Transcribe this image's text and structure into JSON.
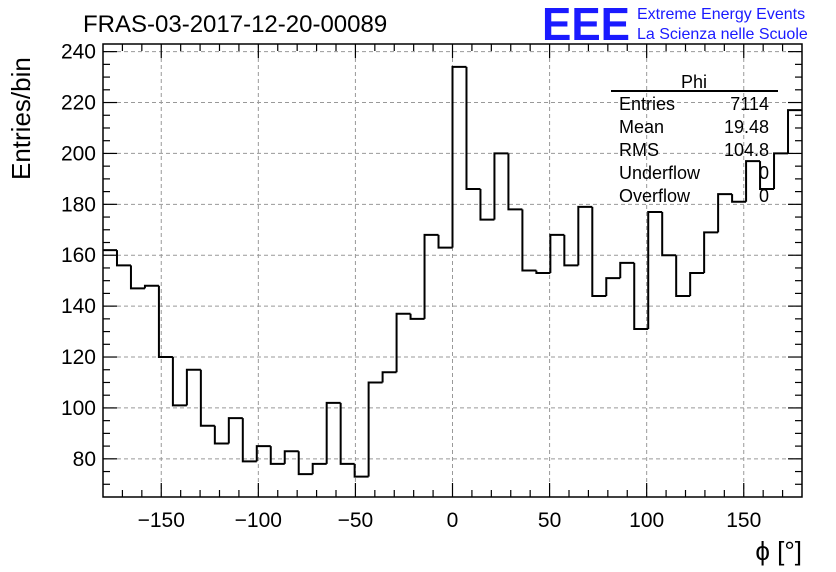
{
  "logo": {
    "mark": "EEE",
    "line1": "Extreme Energy Events",
    "line2": "La Scienza nelle Scuole",
    "color": "#1a1aff"
  },
  "stats": {
    "title": "Phi",
    "rows": [
      {
        "label": "Entries",
        "value": "7114"
      },
      {
        "label": "Mean",
        "value": "19.48"
      },
      {
        "label": "RMS",
        "value": "104.8"
      },
      {
        "label": "Underflow",
        "value": "0"
      },
      {
        "label": "Overflow",
        "value": "0"
      }
    ]
  },
  "chart_data": {
    "type": "bar",
    "subtype": "step-histogram",
    "title": "FRAS-03-2017-12-20-00089",
    "xlabel": "ϕ [°]",
    "ylabel": "Entries/bin",
    "xlim": [
      -180,
      180
    ],
    "ylim": [
      65,
      243
    ],
    "bin_width": 7.2,
    "grid": true,
    "xticks": [
      -150,
      -100,
      -50,
      0,
      50,
      100,
      150
    ],
    "yticks": [
      80,
      100,
      120,
      140,
      160,
      180,
      200,
      220,
      240
    ],
    "values": [
      162,
      156,
      147,
      148,
      120,
      101,
      115,
      93,
      86,
      96,
      79,
      85,
      78,
      83,
      74,
      78,
      102,
      78,
      73,
      110,
      114,
      137,
      135,
      168,
      163,
      234,
      186,
      174,
      200,
      178,
      154,
      153,
      168,
      156,
      179,
      144,
      151,
      157,
      131,
      177,
      160,
      144,
      153,
      169,
      184,
      181,
      197,
      186,
      200,
      217
    ],
    "line_color": "#000000"
  }
}
